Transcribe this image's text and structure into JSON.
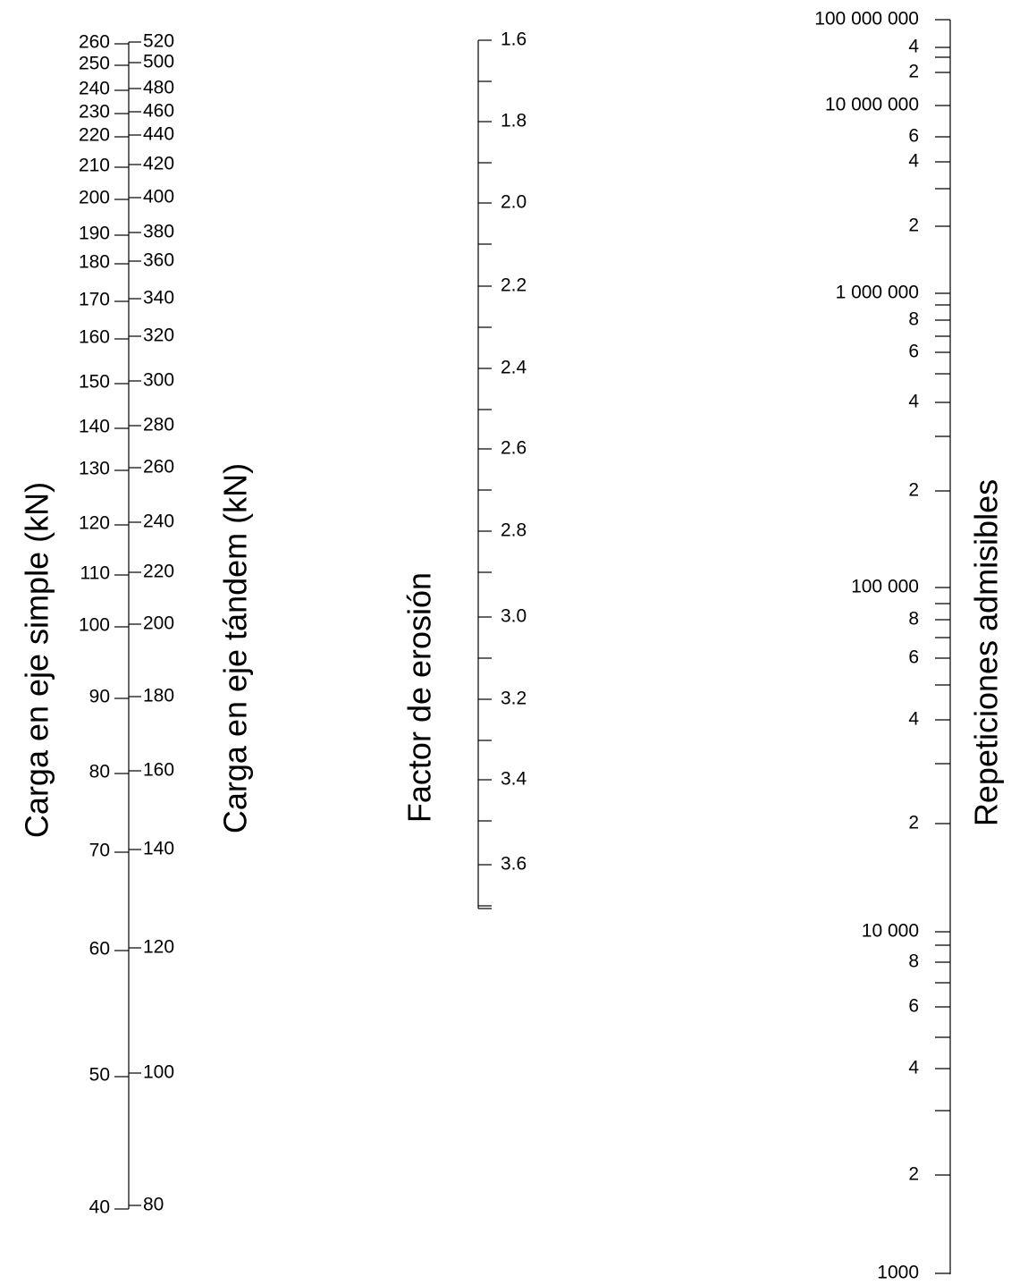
{
  "scales": [
    {
      "title": "Carga en eje simple (kN)",
      "labels": [
        "260",
        "250",
        "240",
        "230",
        "220",
        "210",
        "200",
        "190",
        "180",
        "170",
        "160",
        "150",
        "140",
        "130",
        "120",
        "110",
        "100",
        "90",
        "80",
        "70",
        "60",
        "50",
        "40"
      ]
    },
    {
      "title": "Carga en eje tándem (kN)",
      "labels": [
        "520",
        "500",
        "480",
        "460",
        "440",
        "420",
        "400",
        "380",
        "360",
        "340",
        "320",
        "300",
        "280",
        "260",
        "240",
        "220",
        "200",
        "180",
        "160",
        "140",
        "120",
        "100",
        "80"
      ]
    },
    {
      "title": "Factor de erosión",
      "labels": [
        "1.6",
        "1.8",
        "2.0",
        "2.2",
        "2.4",
        "2.6",
        "2.8",
        "3.0",
        "3.2",
        "3.4",
        "3.6"
      ]
    },
    {
      "title": "Repeticiones admisibles",
      "labels": [
        "100 000 000",
        "4",
        "2",
        "10 000 000",
        "6",
        "4",
        "2",
        "1 000 000",
        "8",
        "6",
        "4",
        "2",
        "100 000",
        "8",
        "6",
        "4",
        "2",
        "10 000",
        "8",
        "6",
        "4",
        "2",
        "1000"
      ]
    }
  ]
}
